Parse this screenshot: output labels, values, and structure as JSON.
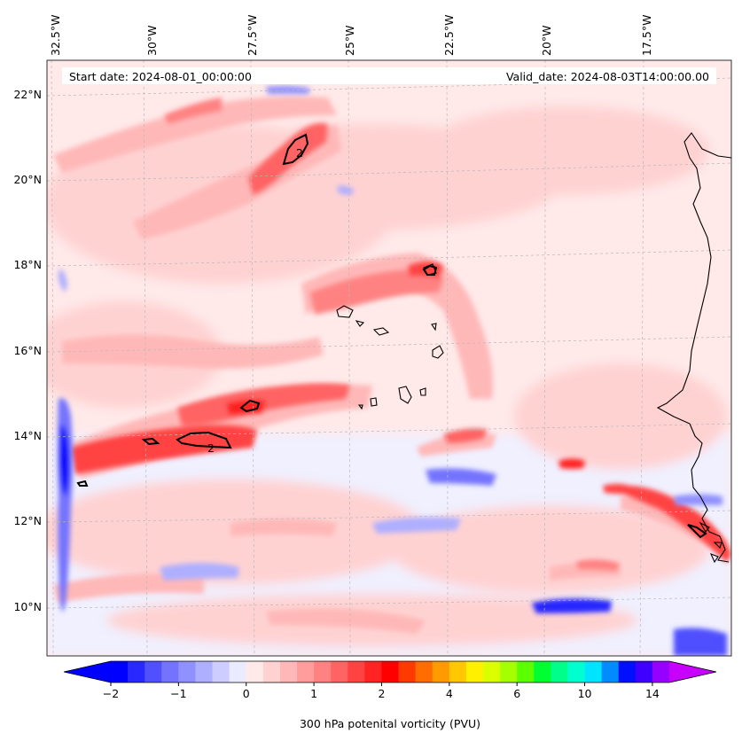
{
  "header": {
    "start_date": "Start date: 2024-08-01_00:00:00",
    "valid_date": "Valid_date: 2024-08-03T14:00:00.00"
  },
  "map": {
    "projection": "Lambert conformal",
    "extent": {
      "lon_min": -33.0,
      "lon_max": -15.5,
      "lat_min": 8.8,
      "lat_max": 22.8
    },
    "lon_labels": [
      "32.5°W",
      "30°W",
      "27.5°W",
      "25°W",
      "22.5°W",
      "20°W",
      "17.5°W"
    ],
    "lat_labels": [
      "22°N",
      "20°N",
      "18°N",
      "16°N",
      "14°N",
      "12°N",
      "10°N"
    ],
    "contour_label": "2",
    "contour_level_pvu": 2
  },
  "colorbar": {
    "title": "300 hPa potenital vorticity (PVU)",
    "tick_labels": [
      "−2",
      "−1",
      "0",
      "1",
      "2",
      "4",
      "6",
      "10",
      "14"
    ],
    "colors": [
      "#0000ff",
      "#2828ff",
      "#5050ff",
      "#7373ff",
      "#9090ff",
      "#afafff",
      "#cdcdff",
      "#ebebff",
      "#ffe9e9",
      "#ffd2d2",
      "#ffb8b8",
      "#ff9d9d",
      "#ff8282",
      "#ff6363",
      "#ff4343",
      "#ff2323",
      "#ff0000",
      "#ff3a00",
      "#ff6c00",
      "#ff9b00",
      "#ffc800",
      "#fff000",
      "#d9ff00",
      "#a6ff00",
      "#5cff00",
      "#00ff30",
      "#00ff8a",
      "#00ffcf",
      "#00e4ff",
      "#008cff",
      "#0010ff",
      "#4000ff",
      "#9600ff"
    ],
    "under_color": "#0000ff",
    "over_color": "#c800ff"
  }
}
